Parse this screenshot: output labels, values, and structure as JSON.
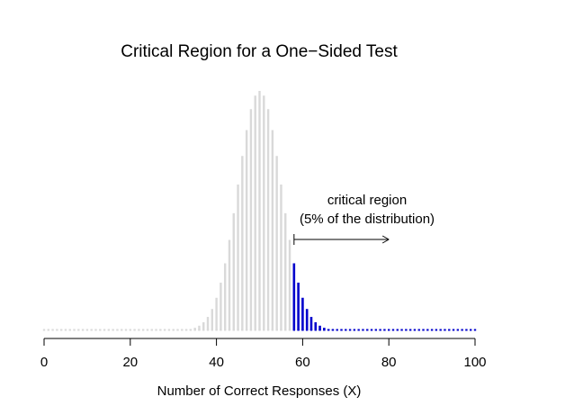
{
  "chart_data": {
    "type": "bar",
    "title": "Critical Region for a One−Sided Test",
    "xlabel": "Number of Correct Responses (X)",
    "ylabel": "",
    "xlim": [
      0,
      100
    ],
    "x_ticks": [
      "0",
      "20",
      "40",
      "60",
      "80",
      "100"
    ],
    "distribution": "binomial",
    "n": 100,
    "p": 0.5,
    "critical_value": 58,
    "series": [
      {
        "role": "non-critical",
        "x_range": [
          0,
          57
        ],
        "color": "#d9d9d9"
      },
      {
        "role": "critical",
        "x_range": [
          58,
          100
        ],
        "color": "#0000cc"
      }
    ],
    "annotation": {
      "line1": "critical region",
      "line2": "(5% of the distribution)",
      "arrow_from_x": 58,
      "arrow_to_x": 80
    },
    "grid": false,
    "legend": "none"
  }
}
